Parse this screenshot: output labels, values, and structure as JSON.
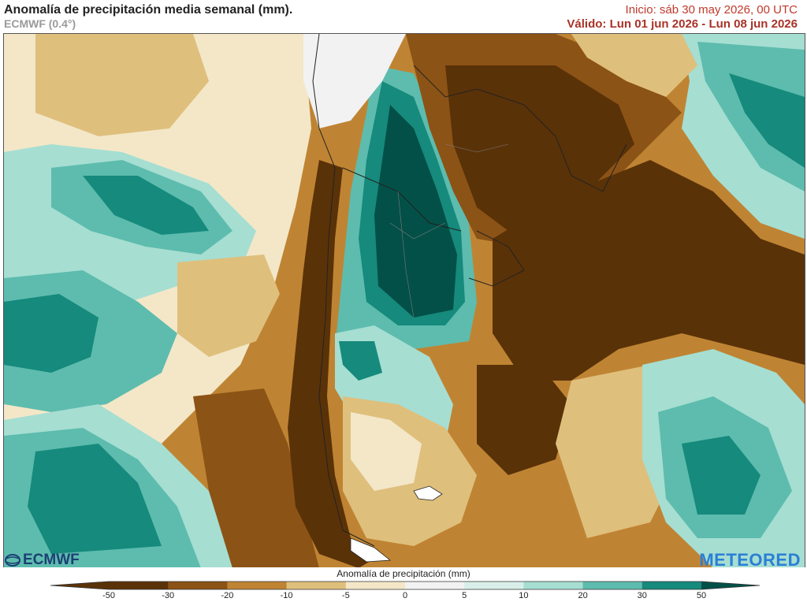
{
  "header": {
    "title": "Anomalía de precipitación media semanal (mm).",
    "subtitle": "ECMWF (0.4°)",
    "init": "Inicio:  sáb 30 may 2026, 00 UTC",
    "valid": "Válido: Lun 01 jun 2026 - Lun 08 jun 2026"
  },
  "logos": {
    "left": "ECMWF",
    "right": "METEORED"
  },
  "legend": {
    "title": "Anomalía de precipitación (mm)",
    "ticks": [
      "-50",
      "-30",
      "-20",
      "-10",
      "-5",
      "0",
      "5",
      "10",
      "20",
      "30",
      "50"
    ],
    "colors": [
      "#5a3208",
      "#8c5316",
      "#bf8433",
      "#dfbf7c",
      "#f3e7c8",
      "#f2f2f2",
      "#d8efe9",
      "#a6ded2",
      "#5dbcae",
      "#168a7c",
      "#035048"
    ]
  },
  "map": {
    "colors": {
      "very_dry": "#5a3208",
      "dry": "#8c5316",
      "mod_dry": "#bf8433",
      "slight_dry": "#dfbf7c",
      "faint_dry": "#f3e7c8",
      "neutral": "#f2f2f2",
      "faint_wet": "#d8efe9",
      "slight_wet": "#a6ded2",
      "mod_wet": "#5dbcae",
      "wet": "#168a7c",
      "very_wet": "#035048",
      "border": "#222222"
    }
  }
}
